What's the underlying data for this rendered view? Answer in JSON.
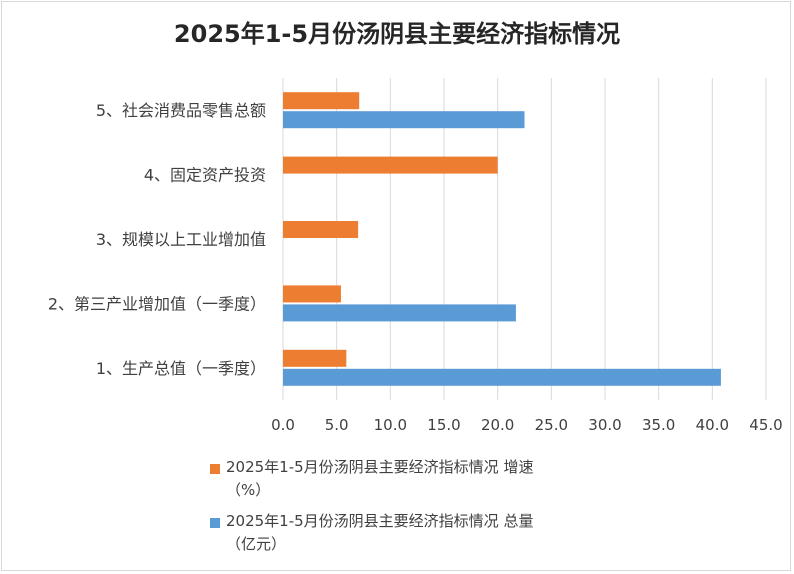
{
  "title": "2025年1-5月份汤阴县主要经济指标情况",
  "colors": {
    "growth": "#ED7D31",
    "total": "#5B9BD5",
    "grid": "#d9d9d9"
  },
  "chart_data": {
    "type": "bar",
    "orientation": "horizontal",
    "title": "2025年1-5月份汤阴县主要经济指标情况",
    "categories": [
      "1、生产总值（一季度）",
      "2、第三产业增加值（一季度）",
      "3、规模以上工业增加值",
      "4、固定资产投资",
      "5、社会消费品零售总额"
    ],
    "series": [
      {
        "name": "2025年1-5月份汤阴县主要经济指标情况 增速（%）",
        "values": [
          5.9,
          5.4,
          7.0,
          20.0,
          7.1
        ]
      },
      {
        "name": "2025年1-5月份汤阴县主要经济指标情况 总量（亿元）",
        "values": [
          40.8,
          21.7,
          null,
          null,
          22.5
        ]
      }
    ],
    "xlim": [
      0,
      45
    ],
    "xticks": [
      "0.0",
      "5.0",
      "10.0",
      "15.0",
      "20.0",
      "25.0",
      "30.0",
      "35.0",
      "40.0",
      "45.0"
    ],
    "grid": true,
    "legend_position": "bottom"
  },
  "legend": [
    {
      "line1": "2025年1-5月份汤阴县主要经济指标情况 增速",
      "line2": "（%）"
    },
    {
      "line1": "2025年1-5月份汤阴县主要经济指标情况 总量",
      "line2": "（亿元）"
    }
  ]
}
